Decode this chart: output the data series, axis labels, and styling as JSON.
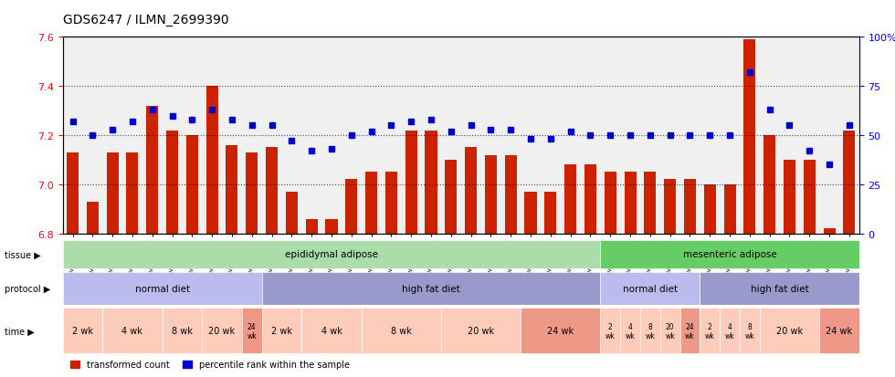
{
  "title": "GDS6247 / ILMN_2699390",
  "ylim": [
    6.8,
    7.6
  ],
  "yticks": [
    6.8,
    7.0,
    7.2,
    7.4,
    7.6
  ],
  "y2lim": [
    0,
    100
  ],
  "y2ticks": [
    0,
    25,
    50,
    75,
    100
  ],
  "samples": [
    "GSM971546",
    "GSM971547",
    "GSM971548",
    "GSM971549",
    "GSM971550",
    "GSM971551",
    "GSM971552",
    "GSM971553",
    "GSM971554",
    "GSM971555",
    "GSM971556",
    "GSM971557",
    "GSM971558",
    "GSM971559",
    "GSM971560",
    "GSM971561",
    "GSM971562",
    "GSM971563",
    "GSM971564",
    "GSM971565",
    "GSM971566",
    "GSM971567",
    "GSM971568",
    "GSM971569",
    "GSM971570",
    "GSM971571",
    "GSM971572",
    "GSM971573",
    "GSM971574",
    "GSM971575",
    "GSM971576",
    "GSM971577",
    "GSM971578",
    "GSM971579",
    "GSM971580",
    "GSM971581",
    "GSM971582",
    "GSM971583",
    "GSM971584",
    "GSM971585"
  ],
  "bar_values": [
    7.13,
    6.93,
    7.13,
    7.13,
    7.32,
    7.22,
    7.2,
    7.4,
    7.16,
    7.13,
    7.15,
    6.97,
    6.86,
    6.86,
    7.02,
    7.05,
    7.05,
    7.22,
    7.22,
    7.1,
    7.15,
    7.12,
    7.12,
    6.97,
    6.97,
    7.08,
    7.08,
    7.05,
    7.05,
    7.05,
    7.02,
    7.02,
    7.0,
    7.0,
    7.59,
    7.2,
    7.1,
    7.1,
    6.82,
    7.22
  ],
  "dot_values": [
    57,
    50,
    53,
    57,
    63,
    60,
    58,
    63,
    58,
    55,
    55,
    47,
    42,
    43,
    50,
    52,
    55,
    57,
    58,
    52,
    55,
    53,
    53,
    48,
    48,
    52,
    50,
    50,
    50,
    50,
    50,
    50,
    50,
    50,
    82,
    63,
    55,
    42,
    35,
    55
  ],
  "bar_color": "#cc2200",
  "dot_color": "#0000cc",
  "bar_bottom": 6.8,
  "tissue_regions": [
    {
      "label": "epididymal adipose",
      "start": 0,
      "end": 27,
      "color": "#aaddaa"
    },
    {
      "label": "mesenteric adipose",
      "start": 27,
      "end": 40,
      "color": "#66cc66"
    }
  ],
  "protocol_regions": [
    {
      "label": "normal diet",
      "start": 0,
      "end": 10,
      "color": "#aaaadd"
    },
    {
      "label": "high fat diet",
      "start": 10,
      "end": 27,
      "color": "#9999dd"
    },
    {
      "label": "normal diet",
      "start": 27,
      "end": 32,
      "color": "#aaaadd"
    },
    {
      "label": "high fat diet",
      "start": 32,
      "end": 40,
      "color": "#9999dd"
    }
  ],
  "time_regions": [
    {
      "label": "2 wk",
      "start": 0,
      "end": 2,
      "color": "#ffbbaa"
    },
    {
      "label": "4 wk",
      "start": 2,
      "end": 5,
      "color": "#ffbbaa"
    },
    {
      "label": "8 wk",
      "start": 5,
      "end": 7,
      "color": "#ffbbaa"
    },
    {
      "label": "20 wk",
      "start": 7,
      "end": 9,
      "color": "#ffbbaa"
    },
    {
      "label": "24 wk",
      "start": 9,
      "end": 10,
      "color": "#ee9988"
    },
    {
      "label": "2 wk",
      "start": 10,
      "end": 12,
      "color": "#ffbbaa"
    },
    {
      "label": "4 wk",
      "start": 12,
      "end": 15,
      "color": "#ffbbaa"
    },
    {
      "label": "8 wk",
      "start": 15,
      "end": 19,
      "color": "#ffbbaa"
    },
    {
      "label": "20 wk",
      "start": 19,
      "end": 23,
      "color": "#ffbbaa"
    },
    {
      "label": "24 wk",
      "start": 23,
      "end": 27,
      "color": "#ee9988"
    },
    {
      "label": "2 wk",
      "start": 27,
      "end": 28,
      "color": "#ffbbaa"
    },
    {
      "label": "4 wk",
      "start": 28,
      "end": 29,
      "color": "#ffbbaa"
    },
    {
      "label": "8 wk",
      "start": 29,
      "end": 30,
      "color": "#ffbbaa"
    },
    {
      "label": "20 wk",
      "start": 30,
      "end": 31,
      "color": "#ffbbaa"
    },
    {
      "label": "24 wk",
      "start": 31,
      "end": 32,
      "color": "#ee9988"
    },
    {
      "label": "2 wk",
      "start": 32,
      "end": 33,
      "color": "#ffbbaa"
    },
    {
      "label": "4 wk",
      "start": 33,
      "end": 34,
      "color": "#ffbbaa"
    },
    {
      "label": "8 wk",
      "start": 34,
      "end": 35,
      "color": "#ffbbaa"
    },
    {
      "label": "20 wk",
      "start": 35,
      "end": 38,
      "color": "#ffbbaa"
    },
    {
      "label": "24 wk",
      "start": 38,
      "end": 40,
      "color": "#ee9988"
    }
  ],
  "legend_items": [
    {
      "label": "transformed count",
      "color": "#cc2200",
      "marker": "s"
    },
    {
      "label": "percentile rank within the sample",
      "color": "#0000cc",
      "marker": "s"
    }
  ]
}
